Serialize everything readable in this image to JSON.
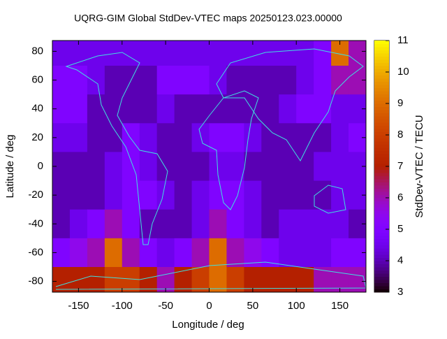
{
  "chart_data": {
    "type": "heatmap",
    "title": "UQRG-GIM Global StdDev-VTEC maps 20250123.023.00000",
    "x_label": "Longitude / deg",
    "y_label": "Latitude / deg",
    "colorbar_label": "StdDev-VTEC / TECU",
    "x": [
      -170,
      -150,
      -130,
      -110,
      -90,
      -70,
      -50,
      -30,
      -10,
      10,
      30,
      50,
      70,
      90,
      110,
      130,
      150,
      170
    ],
    "y": [
      80,
      60,
      40,
      20,
      0,
      -20,
      -40,
      -60,
      -80
    ],
    "values": [
      [
        4.5,
        4.5,
        4.5,
        4.5,
        4.5,
        4.5,
        4.5,
        4.5,
        4.5,
        4.5,
        4.5,
        4.5,
        4.5,
        4.5,
        4.5,
        5,
        9,
        6
      ],
      [
        5,
        5,
        4.5,
        4,
        4,
        4,
        5,
        5,
        5,
        4.5,
        4,
        4,
        4,
        4,
        4.5,
        5,
        6,
        6
      ],
      [
        5,
        5,
        4,
        4,
        4,
        4,
        4.5,
        4,
        4,
        4,
        4,
        4,
        4,
        4.5,
        5,
        5,
        4.5,
        4.5
      ],
      [
        4.5,
        4.5,
        4,
        4,
        5,
        4.5,
        4,
        4,
        4.5,
        5,
        5,
        4.5,
        4,
        4,
        4,
        4,
        4.5,
        5
      ],
      [
        4,
        4,
        4,
        4.5,
        5,
        4.5,
        4,
        4,
        4,
        4.5,
        4.5,
        4,
        4,
        4,
        4,
        4.5,
        4.5,
        4.5
      ],
      [
        4,
        4,
        4,
        4.5,
        5,
        5,
        4.5,
        4,
        4.5,
        5,
        5,
        4.5,
        4,
        4,
        4,
        4,
        4.5,
        4.5
      ],
      [
        4,
        4.5,
        5,
        6,
        5,
        4,
        4,
        4,
        4.5,
        6,
        5,
        4.5,
        4,
        4.5,
        4.5,
        4.5,
        4.5,
        4
      ],
      [
        5,
        5.5,
        6,
        9,
        6,
        5,
        4.5,
        5,
        6,
        9,
        6,
        5.5,
        5,
        4.5,
        4.5,
        4.5,
        5,
        5
      ],
      [
        7,
        7,
        7,
        8,
        8,
        7,
        6,
        7,
        8,
        9,
        8,
        7,
        7,
        7,
        7,
        6,
        6,
        6
      ]
    ],
    "xlim": [
      -180,
      180
    ],
    "ylim": [
      -87.5,
      87.5
    ],
    "xticks": [
      -150,
      -100,
      -50,
      0,
      50,
      100,
      150
    ],
    "yticks": [
      -80,
      -60,
      -40,
      -20,
      0,
      20,
      40,
      60,
      80
    ],
    "cblim": [
      3,
      11
    ],
    "cbticks": [
      3,
      4,
      5,
      6,
      7,
      8,
      9,
      10,
      11
    ]
  }
}
